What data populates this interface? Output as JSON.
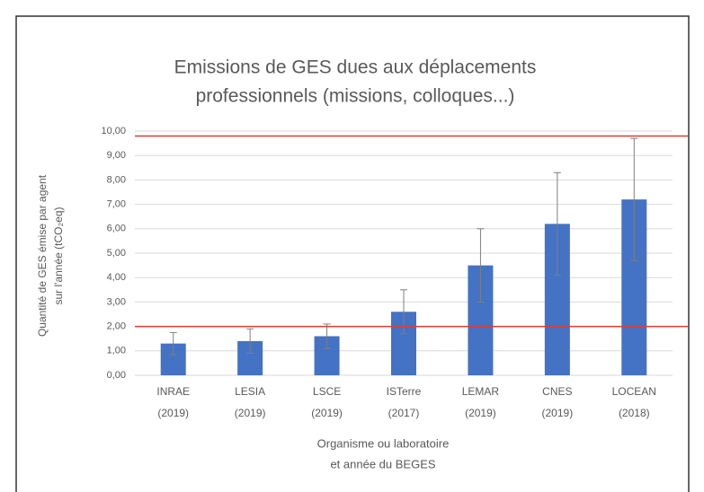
{
  "chart_data": {
    "type": "bar",
    "title": [
      "Emissions de GES dues aux déplacements",
      "professionnels (missions, colloques...)"
    ],
    "ylabel": [
      "Quantité de GES émise par agent",
      "sur l'année (tCO₂eq)"
    ],
    "xlabel": [
      "Organisme ou laboratoire",
      "et année du BEGES"
    ],
    "categories": [
      [
        "INRAE",
        "(2019)"
      ],
      [
        "LESIA",
        "(2019)"
      ],
      [
        "LSCE",
        "(2019)"
      ],
      [
        "ISTerre",
        "(2017)"
      ],
      [
        "LEMAR",
        "(2019)"
      ],
      [
        "CNES",
        "(2019)"
      ],
      [
        "LOCEAN",
        "(2018)"
      ]
    ],
    "values": [
      1.3,
      1.4,
      1.6,
      2.6,
      4.5,
      6.2,
      7.2
    ],
    "errors": [
      0.45,
      0.5,
      0.5,
      0.9,
      1.5,
      2.1,
      2.5
    ],
    "color": "#4472c4",
    "ylim": [
      0,
      10
    ],
    "yticks": [
      {
        "value": 0,
        "label": "0,00"
      },
      {
        "value": 1,
        "label": "1,00"
      },
      {
        "value": 2,
        "label": "2,00"
      },
      {
        "value": 3,
        "label": "3,00"
      },
      {
        "value": 4,
        "label": "4,00"
      },
      {
        "value": 5,
        "label": "5,00"
      },
      {
        "value": 6,
        "label": "6,00"
      },
      {
        "value": 7,
        "label": "7,00"
      },
      {
        "value": 8,
        "label": "8,00"
      },
      {
        "value": 9,
        "label": "9,00"
      },
      {
        "value": 10,
        "label": "10,00"
      }
    ],
    "grid": true,
    "reference_lines": [
      {
        "value": 2,
        "color": "#e03c31"
      },
      {
        "value": 9.8,
        "color": "#e03c31"
      }
    ]
  }
}
